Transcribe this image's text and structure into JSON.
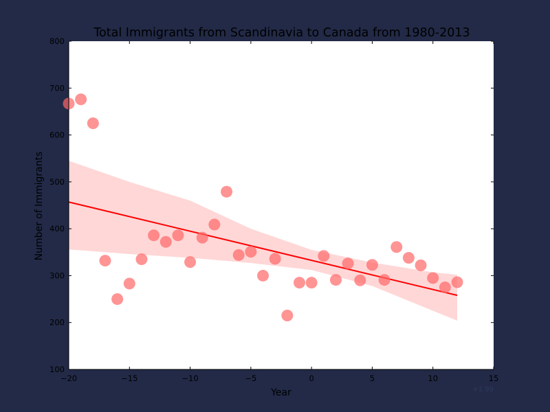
{
  "chart_data": {
    "type": "scatter",
    "title": "Total Immigrants from Scandinavia to Canada from 1980-2013",
    "xlabel": "Year",
    "ylabel": "Number of Immigrants",
    "offset_label": "+1.99",
    "xlim": [
      -20,
      15
    ],
    "ylim": [
      100,
      800
    ],
    "xticks": [
      -20,
      -15,
      -10,
      -5,
      0,
      5,
      10,
      15
    ],
    "xtick_labels": [
      "−20",
      "−15",
      "−10",
      "−5",
      "0",
      "5",
      "10",
      "15"
    ],
    "yticks": [
      100,
      200,
      300,
      400,
      500,
      600,
      700,
      800
    ],
    "ytick_labels": [
      "100",
      "200",
      "300",
      "400",
      "500",
      "600",
      "700",
      "800"
    ],
    "grid": false,
    "colors": {
      "points": "#ff6666",
      "line": "#ff0000",
      "band": "#ffbcbc",
      "background": "#222a47"
    },
    "points": {
      "x": [
        -20,
        -19,
        -18,
        -17,
        -16,
        -15,
        -14,
        -13,
        -12,
        -11,
        -10,
        -9,
        -8,
        -7,
        -6,
        -5,
        -4,
        -3,
        -2,
        -1,
        0,
        1,
        2,
        3,
        4,
        5,
        6,
        7,
        8,
        9,
        10,
        11,
        12
      ],
      "y": [
        667,
        676,
        625,
        332,
        250,
        283,
        335,
        386,
        372,
        386,
        329,
        381,
        409,
        479,
        344,
        351,
        300,
        336,
        215,
        285,
        285,
        342,
        291,
        326,
        290,
        323,
        291,
        361,
        338,
        322,
        295,
        275,
        286
      ]
    },
    "regression": {
      "x": [
        -20,
        12
      ],
      "y": [
        457,
        258
      ]
    },
    "confidence_band": {
      "x": [
        -20,
        -15,
        -10,
        -5,
        0,
        5,
        10,
        12
      ],
      "upper": [
        545,
        500,
        460,
        400,
        355,
        328,
        307,
        302
      ],
      "lower": [
        356,
        346,
        338,
        327,
        312,
        278,
        225,
        204
      ]
    }
  }
}
